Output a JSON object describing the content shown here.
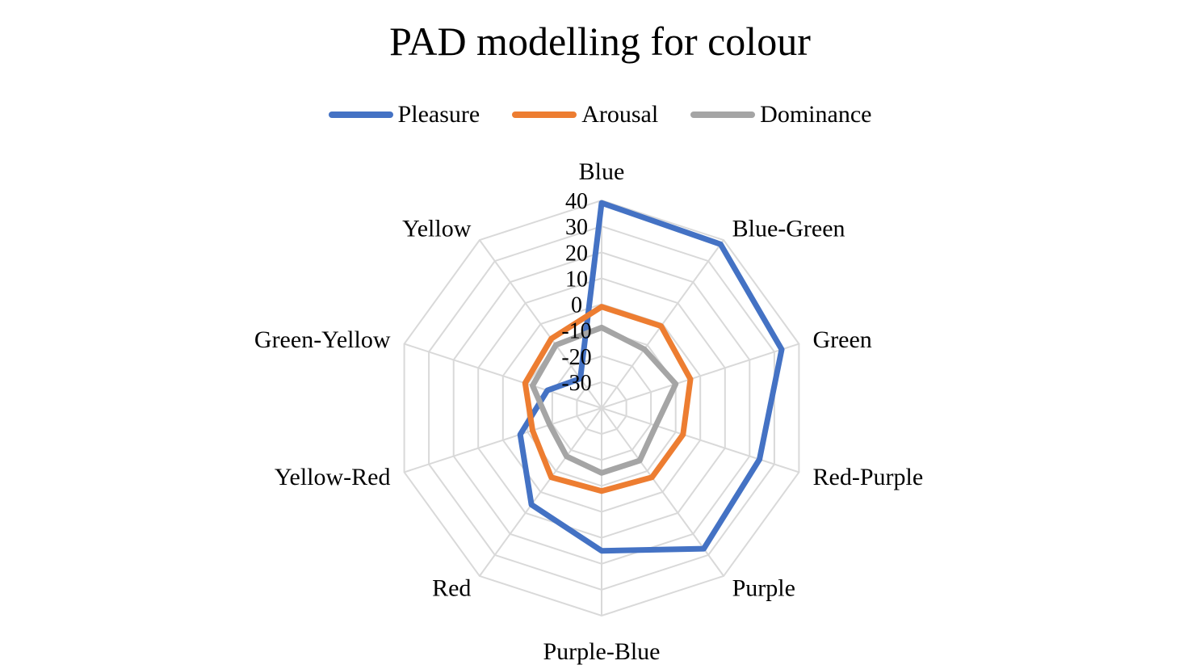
{
  "chart_data": {
    "type": "radar",
    "title": "PAD modelling for colour",
    "categories": [
      "Blue",
      "Blue-Green",
      "Green",
      "Red-Purple",
      "Purple",
      "Purple-Blue",
      "Red",
      "Yellow-Red",
      "Green-Yellow",
      "Yellow"
    ],
    "series": [
      {
        "name": "Pleasure",
        "color": "#4472C4",
        "values": [
          39,
          38,
          33,
          24,
          27,
          15,
          6,
          -7,
          -18,
          -26
        ]
      },
      {
        "name": "Arousal",
        "color": "#ED7D31",
        "values": [
          -1,
          -1,
          -4,
          -7,
          -7,
          -8,
          -7,
          -12,
          -9,
          -7
        ]
      },
      {
        "name": "Dominance",
        "color": "#A5A5A5",
        "values": [
          -9,
          -12,
          -10,
          -18,
          -15,
          -15,
          -17,
          -19,
          -12,
          -10
        ]
      }
    ],
    "r_axis": {
      "min": -40,
      "max": 40,
      "ticks": [
        -30,
        -20,
        -10,
        0,
        10,
        20,
        30,
        40
      ]
    },
    "grid": true,
    "legend_position": "top"
  }
}
